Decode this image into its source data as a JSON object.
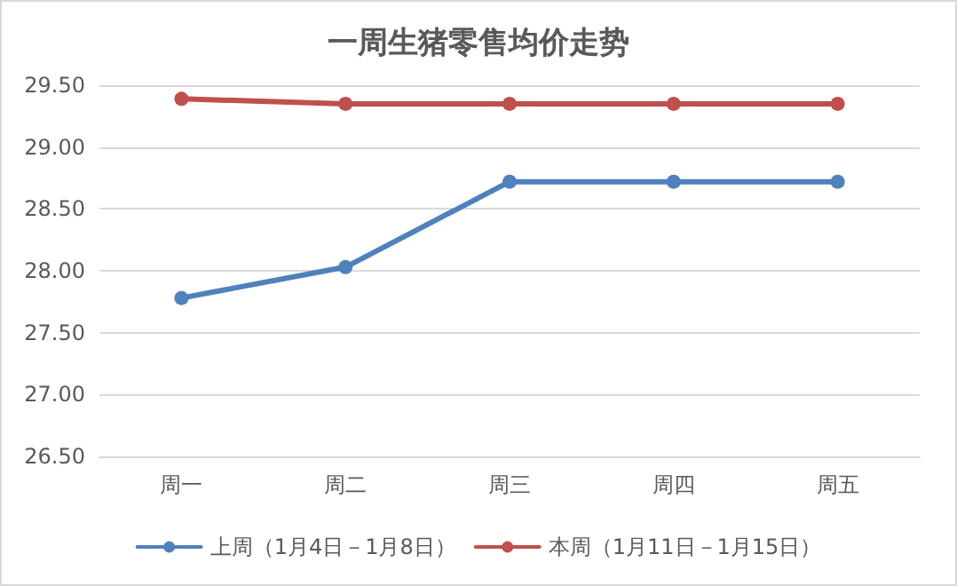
{
  "chart_data": {
    "type": "line",
    "title": "一周生猪零售均价走势",
    "categories": [
      "周一",
      "周二",
      "周三",
      "周四",
      "周五"
    ],
    "series": [
      {
        "name": "上周（1月4日－1月8日）",
        "color": "#4f81bd",
        "values": [
          27.78,
          28.03,
          28.72,
          28.72,
          28.72
        ]
      },
      {
        "name": "本周（1月11日－1月15日）",
        "color": "#c0504d",
        "values": [
          29.39,
          29.35,
          29.35,
          29.35,
          29.35
        ]
      }
    ],
    "ylim": [
      26.5,
      29.5
    ],
    "yticks": [
      {
        "value": 26.5,
        "label": "26.50"
      },
      {
        "value": 27,
        "label": "27.00"
      },
      {
        "value": 27.5,
        "label": "27.50"
      },
      {
        "value": 28,
        "label": "28.00"
      },
      {
        "value": 28.5,
        "label": "28.50"
      },
      {
        "value": 29,
        "label": "29.00"
      },
      {
        "value": 29.5,
        "label": "29.50"
      }
    ],
    "grid": "y",
    "legend": "bottom",
    "marker": "circle",
    "line_style": "solid"
  }
}
